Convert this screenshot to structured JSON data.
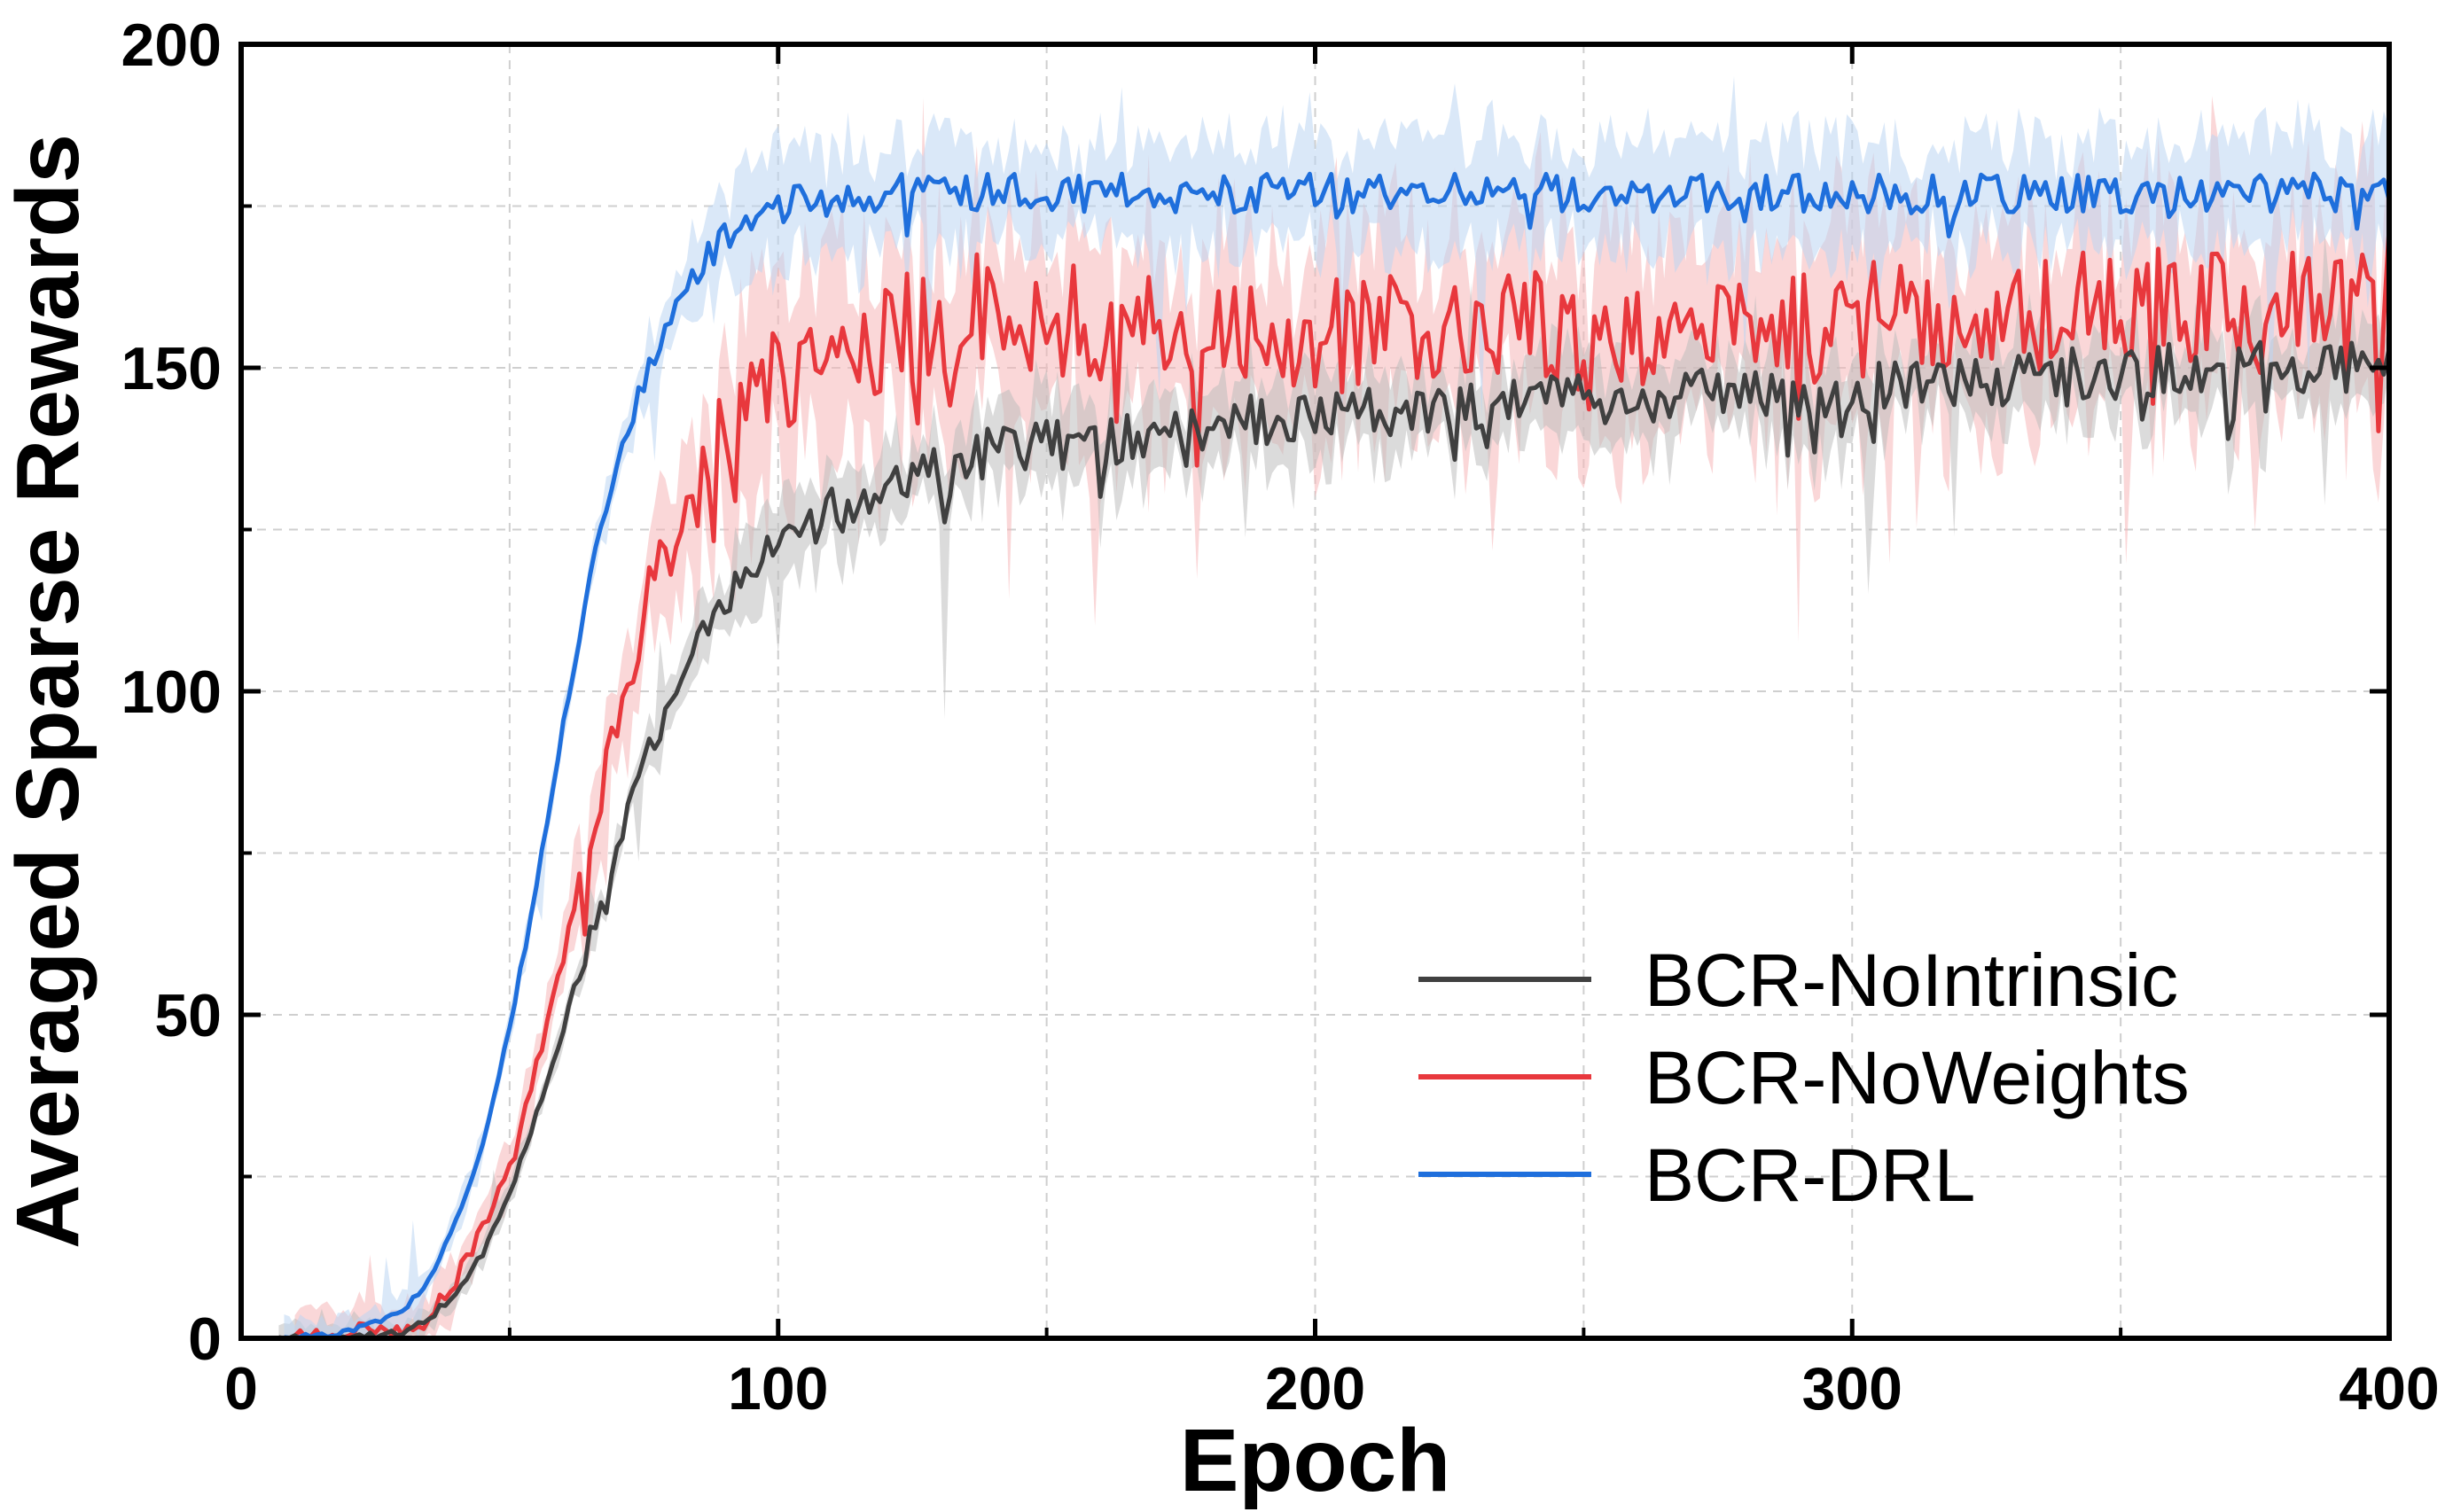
{
  "chart_data": {
    "type": "line",
    "title": "",
    "xlabel": "Epoch",
    "ylabel": "Averaged Sparse Rewards",
    "xlim": [
      0,
      400
    ],
    "ylim": [
      0,
      200
    ],
    "xticks": [
      0,
      100,
      200,
      300,
      400
    ],
    "yticks": [
      0,
      50,
      100,
      150,
      200
    ],
    "xticks_minor": [
      50,
      150,
      250,
      350
    ],
    "yticks_minor": [
      25,
      75,
      125,
      175
    ],
    "grid": true,
    "legend_position": "bottom-right",
    "shaded_band": "variance band around each series",
    "series": [
      {
        "name": "BCR-NoIntrinsic",
        "color": "#404040",
        "band_color": "#bdbdbd",
        "x": [
          7,
          20,
          30,
          35,
          40,
          45,
          50,
          55,
          60,
          65,
          70,
          75,
          80,
          85,
          90,
          95,
          100,
          110,
          120,
          130,
          140,
          150,
          160,
          170,
          180,
          190,
          200,
          210,
          220,
          230,
          240,
          250,
          260,
          270,
          280,
          290,
          300,
          310,
          320,
          330,
          340,
          350,
          360,
          370,
          380,
          390,
          400
        ],
        "y": [
          0,
          0,
          1,
          3,
          7,
          13,
          22,
          35,
          48,
          62,
          76,
          89,
          100,
          108,
          114,
          119,
          123,
          128,
          131,
          134,
          137,
          138,
          139,
          140,
          141,
          142,
          142,
          143,
          144,
          144,
          145,
          145,
          145,
          146,
          146,
          146,
          147,
          147,
          148,
          148,
          149,
          149,
          150,
          150,
          150,
          150,
          150
        ]
      },
      {
        "name": "BCR-NoWeights",
        "color": "#e8383d",
        "band_color": "#f6b7b8",
        "x": [
          10,
          20,
          30,
          35,
          40,
          45,
          50,
          55,
          60,
          65,
          70,
          75,
          80,
          85,
          90,
          95,
          100,
          110,
          120,
          130,
          140,
          150,
          160,
          170,
          180,
          190,
          200,
          210,
          220,
          230,
          240,
          250,
          260,
          270,
          280,
          290,
          300,
          310,
          320,
          330,
          340,
          350,
          360,
          370,
          380,
          390,
          400
        ],
        "y": [
          0,
          1,
          1,
          4,
          9,
          17,
          28,
          42,
          58,
          76,
          95,
          112,
          124,
          133,
          140,
          145,
          148,
          153,
          155,
          157,
          160,
          158,
          157,
          157,
          156,
          155,
          155,
          155,
          156,
          156,
          156,
          155,
          156,
          157,
          157,
          157,
          157,
          158,
          158,
          158,
          159,
          159,
          160,
          160,
          161,
          162,
          163
        ]
      },
      {
        "name": "BCR-DRL",
        "color": "#1f6fdc",
        "band_color": "#bcd5f3",
        "x": [
          8,
          20,
          30,
          35,
          40,
          45,
          50,
          55,
          60,
          65,
          70,
          75,
          80,
          85,
          90,
          95,
          100,
          110,
          120,
          130,
          140,
          150,
          160,
          170,
          180,
          190,
          200,
          210,
          220,
          230,
          240,
          250,
          260,
          270,
          280,
          290,
          300,
          310,
          320,
          330,
          340,
          350,
          360,
          370,
          380,
          390,
          400
        ],
        "y": [
          0,
          1,
          4,
          9,
          18,
          30,
          48,
          70,
          95,
          118,
          136,
          148,
          158,
          165,
          170,
          173,
          175,
          176,
          177,
          177,
          177,
          177,
          177,
          177,
          177,
          177,
          177,
          177,
          177,
          177,
          177,
          177,
          177,
          177,
          177,
          177,
          177,
          177,
          177,
          177,
          177,
          177,
          177,
          177,
          177,
          177,
          177
        ]
      }
    ]
  }
}
